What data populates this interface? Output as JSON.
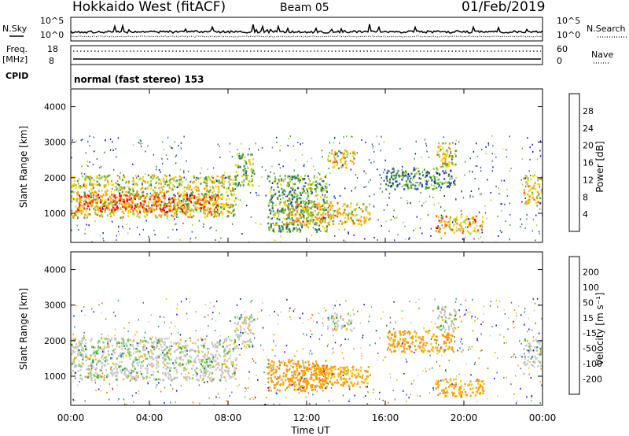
{
  "header": {
    "title": "Hokkaido West (fitACF)",
    "beam": "Beam 05",
    "date": "01/Feb/2019"
  },
  "top_panel": {
    "nsky_label": "N.Sky",
    "nsearch_label": "N.Search",
    "noise_hi": "10^5",
    "noise_lo": "10^0",
    "freq_label": "Freq.",
    "freq_unit": "[MHz]",
    "freq_hi": "18",
    "freq_lo": "8",
    "nave_label": "Nave",
    "nave_hi": "60",
    "nave_lo": "0",
    "cpid_label": "CPID",
    "cpid_value": "normal (fast stereo) 153"
  },
  "colors": {
    "power_scale": [
      "#0000ff",
      "#2f4fb0",
      "#2f7f4f",
      "#4fa03f",
      "#9fcf3f",
      "#ffd700",
      "#ff9900",
      "#ff5a00",
      "#ff0000"
    ],
    "velocity_scale": [
      "#ff0000",
      "#ff6a00",
      "#ff9a00",
      "#ffbf00",
      "#c8c8c8",
      "#c8c8c8",
      "#6acd39",
      "#2e9b57",
      "#3a6fb8",
      "#0000ff"
    ]
  },
  "chart_data": [
    {
      "type": "heatmap",
      "name_panel": "power",
      "ylabel": "Slant Range [km]",
      "y_ticks": [
        "1000",
        "2000",
        "3000",
        "4000"
      ],
      "ylim": [
        180,
        4500
      ],
      "x_ticks": [
        "00:00",
        "04:00",
        "08:00",
        "12:00",
        "16:00",
        "20:00",
        "00:00"
      ],
      "xlim_hours": [
        0,
        24
      ],
      "colorbar_label": "Power [dB]",
      "colorbar_ticks": [
        "4",
        "8",
        "12",
        "16",
        "20",
        "24",
        "28"
      ],
      "colorbar_range": [
        0,
        32
      ],
      "regions": [
        {
          "t0": 0.0,
          "t1": 8.4,
          "r0": 900,
          "r1": 2100,
          "value": 18
        },
        {
          "t0": 0.2,
          "t1": 7.5,
          "r0": 1050,
          "r1": 1550,
          "value": 27
        },
        {
          "t0": 8.3,
          "t1": 9.3,
          "r0": 1800,
          "r1": 2700,
          "value": 14
        },
        {
          "t0": 10.0,
          "t1": 13.0,
          "r0": 500,
          "r1": 2100,
          "value": 12
        },
        {
          "t0": 10.8,
          "t1": 15.2,
          "r0": 700,
          "r1": 1350,
          "value": 20
        },
        {
          "t0": 13.0,
          "t1": 14.4,
          "r0": 2300,
          "r1": 2800,
          "value": 20
        },
        {
          "t0": 16.0,
          "t1": 19.5,
          "r0": 1700,
          "r1": 2300,
          "value": 10
        },
        {
          "t0": 18.5,
          "t1": 21.0,
          "r0": 450,
          "r1": 950,
          "value": 22
        },
        {
          "t0": 18.6,
          "t1": 19.6,
          "r0": 2300,
          "r1": 3000,
          "value": 18
        },
        {
          "t0": 23.0,
          "t1": 24.0,
          "r0": 1300,
          "r1": 2100,
          "value": 20
        }
      ]
    },
    {
      "type": "heatmap",
      "name_panel": "velocity",
      "ylabel": "Slant Range [km]",
      "y_ticks": [
        "1000",
        "2000",
        "3000",
        "4000"
      ],
      "ylim": [
        180,
        4500
      ],
      "x_ticks": [
        "00:00",
        "04:00",
        "08:00",
        "12:00",
        "16:00",
        "20:00",
        "00:00"
      ],
      "xlabel": "Time UT",
      "xlim_hours": [
        0,
        24
      ],
      "colorbar_label": "Velocity [m s⁻¹]",
      "colorbar_ticks": [
        "-200",
        "-100",
        "-50",
        "-15",
        "15",
        "50",
        "100",
        "200"
      ],
      "regions": [
        {
          "t0": 0.0,
          "t1": 8.4,
          "r0": 900,
          "r1": 2100,
          "value": 0
        },
        {
          "t0": 8.3,
          "t1": 9.3,
          "r0": 1800,
          "r1": 2700,
          "value": 0
        },
        {
          "t0": 10.0,
          "t1": 13.0,
          "r0": 600,
          "r1": 1500,
          "value": -80
        },
        {
          "t0": 11.0,
          "t1": 15.2,
          "r0": 700,
          "r1": 1300,
          "value": -60
        },
        {
          "t0": 13.0,
          "t1": 14.4,
          "r0": 2300,
          "r1": 2800,
          "value": 0
        },
        {
          "t0": 16.0,
          "t1": 19.5,
          "r0": 1700,
          "r1": 2300,
          "value": -70
        },
        {
          "t0": 18.5,
          "t1": 21.0,
          "r0": 450,
          "r1": 950,
          "value": -60
        },
        {
          "t0": 18.6,
          "t1": 19.6,
          "r0": 2300,
          "r1": 3000,
          "value": 0
        },
        {
          "t0": 23.0,
          "t1": 24.0,
          "r0": 1300,
          "r1": 2100,
          "value": 0
        }
      ]
    }
  ]
}
